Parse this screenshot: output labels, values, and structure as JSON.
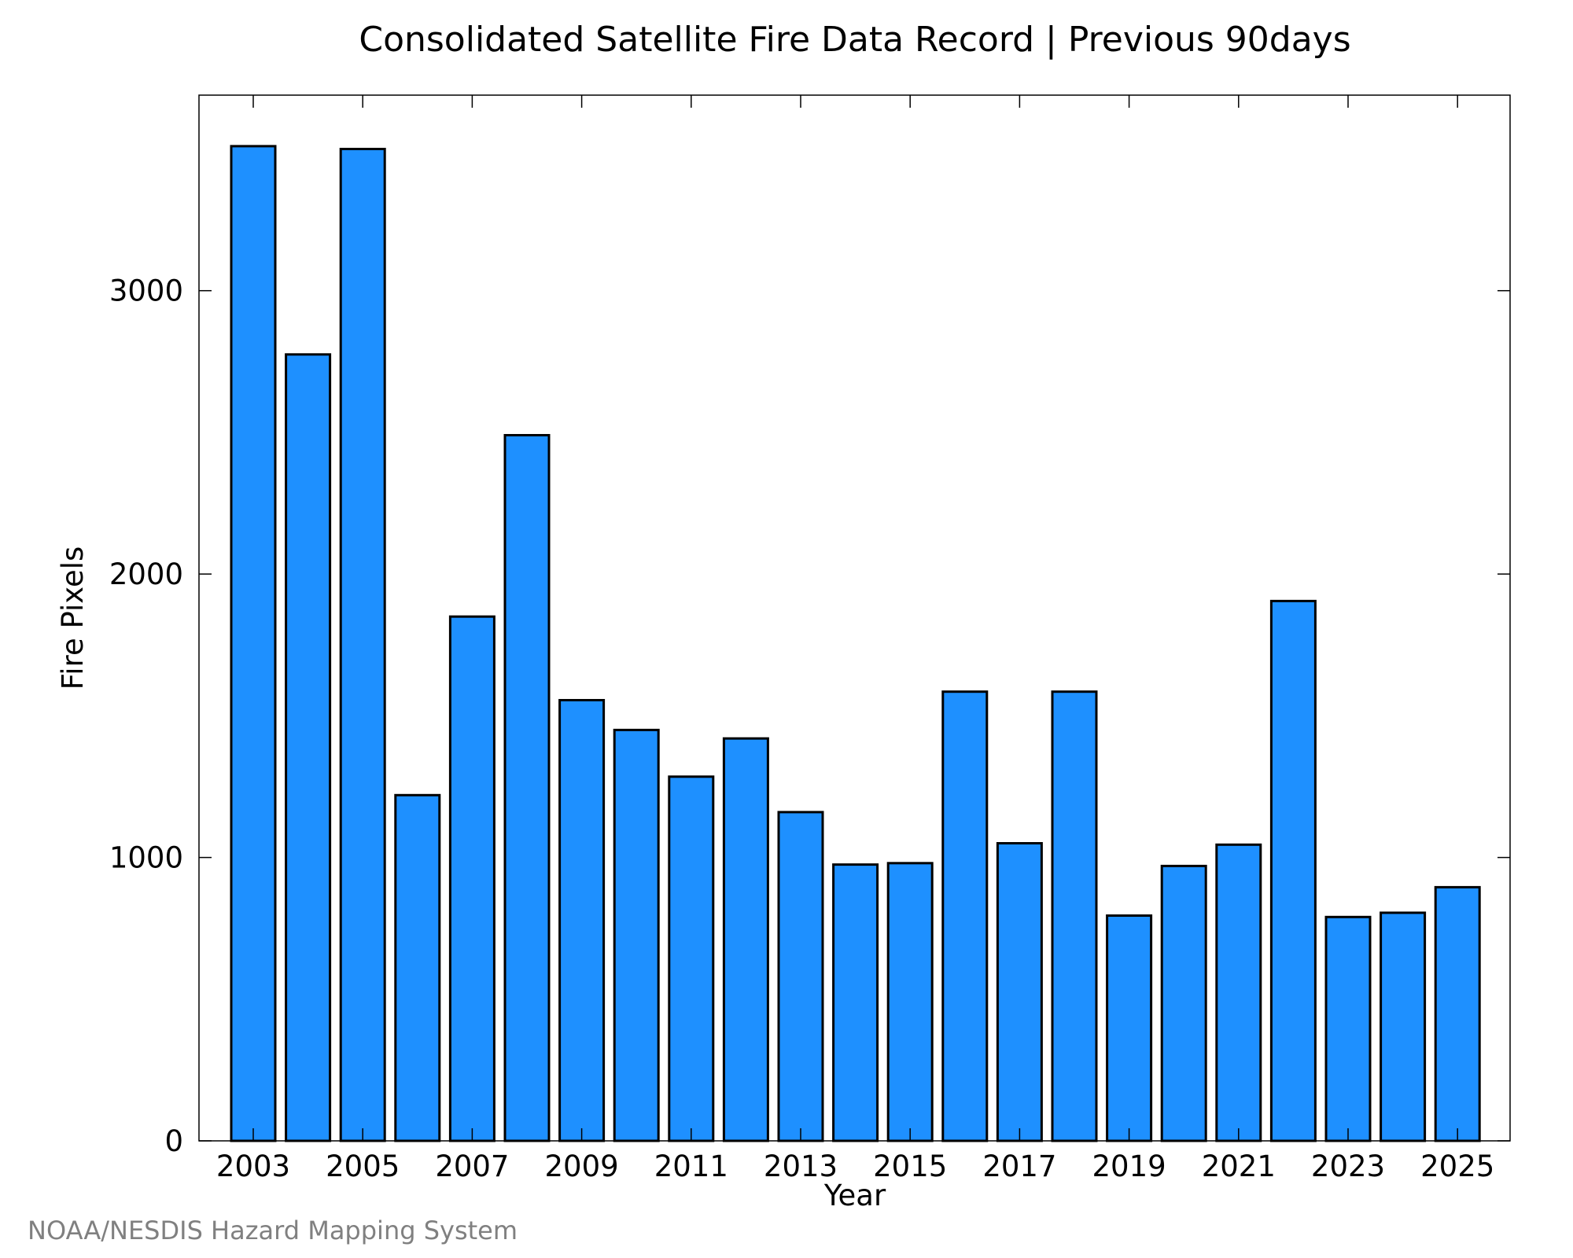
{
  "chart_data": {
    "type": "bar",
    "title": "Consolidated Satellite Fire Data Record | Previous 90days",
    "xlabel": "Year",
    "ylabel": "Fire Pixels",
    "categories": [
      "2003",
      "2004",
      "2005",
      "2006",
      "2007",
      "2008",
      "2009",
      "2010",
      "2011",
      "2012",
      "2013",
      "2014",
      "2015",
      "2016",
      "2017",
      "2018",
      "2019",
      "2020",
      "2021",
      "2022",
      "2023",
      "2024",
      "2025"
    ],
    "values": [
      3510,
      2775,
      3500,
      1220,
      1850,
      2490,
      1555,
      1450,
      1285,
      1420,
      1160,
      975,
      980,
      1585,
      1050,
      1585,
      795,
      970,
      1045,
      1905,
      790,
      805,
      895
    ],
    "x_tick_labels": [
      "2003",
      "2005",
      "2007",
      "2009",
      "2011",
      "2013",
      "2015",
      "2017",
      "2019",
      "2021",
      "2023",
      "2025"
    ],
    "y_ticks": [
      0,
      1000,
      2000,
      3000
    ],
    "ylim": [
      0,
      3690
    ],
    "grid": false,
    "bar_color": "#1e90ff",
    "bar_edge_color": "#000000"
  },
  "footer": {
    "source": "NOAA/NESDIS Hazard Mapping System"
  }
}
